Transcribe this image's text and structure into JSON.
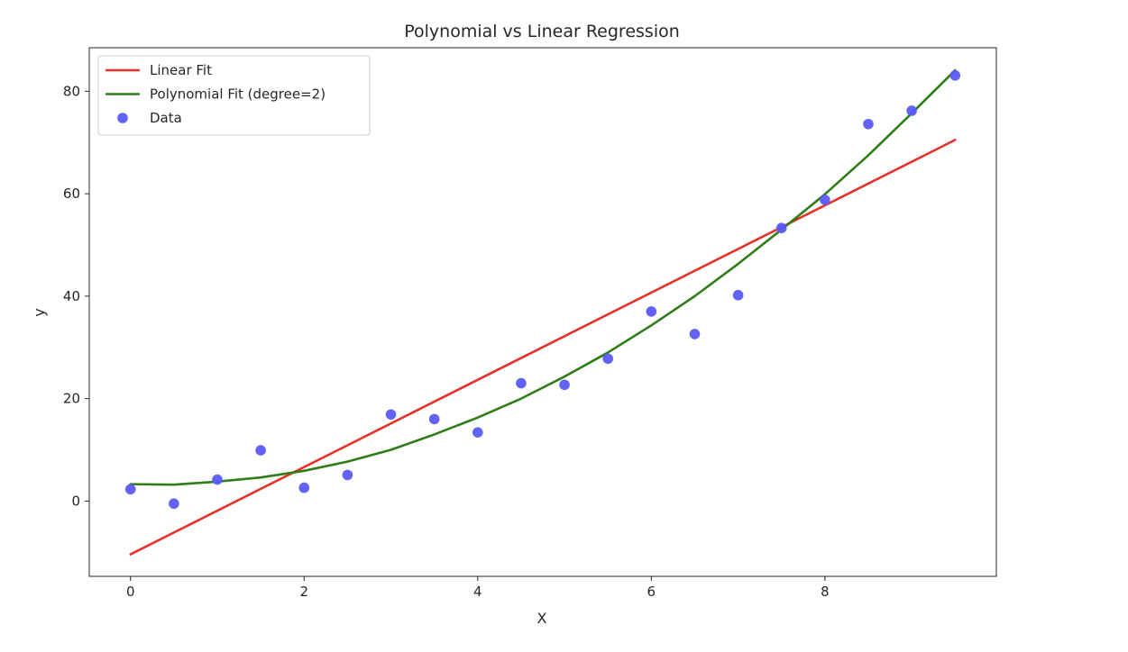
{
  "chart_data": {
    "type": "scatter",
    "title": "Polynomial vs Linear Regression",
    "xlabel": "X",
    "ylabel": "y",
    "xlim": [
      -0.475,
      9.975
    ],
    "ylim": [
      -14.7,
      88.5
    ],
    "xticks": [
      0,
      2,
      4,
      6,
      8
    ],
    "yticks": [
      0,
      20,
      40,
      60,
      80
    ],
    "grid": false,
    "legend_position": "upper left",
    "series": [
      {
        "name": "Linear Fit",
        "kind": "line",
        "color": "#e8302a",
        "x": [
          0,
          9.5
        ],
        "y": [
          -10.4,
          70.5
        ]
      },
      {
        "name": "Polynomial Fit (degree=2)",
        "kind": "line",
        "color": "#2e7d16",
        "x": [
          0,
          0.5,
          1,
          1.5,
          2,
          2.5,
          3,
          3.5,
          4,
          4.5,
          5,
          5.5,
          6,
          6.5,
          7,
          7.5,
          8,
          8.5,
          9,
          9.5
        ],
        "y": [
          3.3,
          3.2,
          3.8,
          4.6,
          5.9,
          7.7,
          10.0,
          13.0,
          16.3,
          20.0,
          24.3,
          29.0,
          34.3,
          40.0,
          46.3,
          53.0,
          59.9,
          67.5,
          75.7,
          84.1
        ]
      },
      {
        "name": "Data",
        "kind": "scatter",
        "color": "#5a5af5",
        "x": [
          0,
          0.5,
          1,
          1.5,
          2,
          2.5,
          3,
          3.5,
          4,
          4.5,
          5,
          5.5,
          6,
          6.5,
          7,
          7.5,
          8,
          8.5,
          9,
          9.5
        ],
        "y": [
          2.3,
          -0.5,
          4.2,
          9.9,
          2.6,
          5.1,
          16.9,
          16.0,
          13.4,
          23.0,
          22.7,
          27.8,
          37.0,
          32.6,
          40.2,
          53.3,
          58.8,
          73.6,
          76.2,
          83.1
        ]
      }
    ]
  }
}
